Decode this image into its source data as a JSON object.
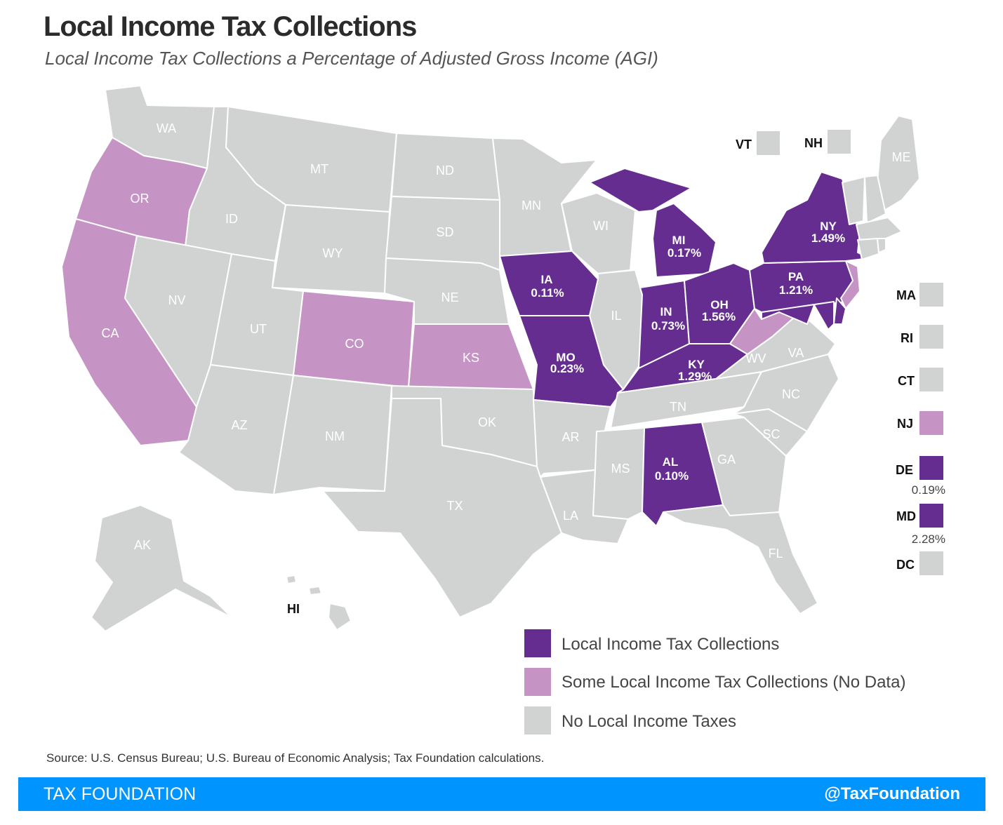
{
  "title": "Local Income Tax Collections",
  "subtitle": "Local Income Tax Collections a Percentage of Adjusted Gross Income (AGI)",
  "colors": {
    "collections": "#662d91",
    "some_no_data": "#c594c5",
    "none": "#d1d3d2",
    "footer_bar": "#0094ff"
  },
  "legend": [
    {
      "category": "collections",
      "label": "Local Income Tax Collections"
    },
    {
      "category": "some_no_data",
      "label": "Some Local Income Tax Collections (No Data)"
    },
    {
      "category": "none",
      "label": "No Local Income Taxes"
    }
  ],
  "states": {
    "WA": {
      "label": "WA",
      "category": "none",
      "value": null
    },
    "OR": {
      "label": "OR",
      "category": "some_no_data",
      "value": null
    },
    "CA": {
      "label": "CA",
      "category": "some_no_data",
      "value": null
    },
    "ID": {
      "label": "ID",
      "category": "none",
      "value": null
    },
    "NV": {
      "label": "NV",
      "category": "none",
      "value": null
    },
    "MT": {
      "label": "MT",
      "category": "none",
      "value": null
    },
    "WY": {
      "label": "WY",
      "category": "none",
      "value": null
    },
    "UT": {
      "label": "UT",
      "category": "none",
      "value": null
    },
    "AZ": {
      "label": "AZ",
      "category": "none",
      "value": null
    },
    "CO": {
      "label": "CO",
      "category": "some_no_data",
      "value": null
    },
    "NM": {
      "label": "NM",
      "category": "none",
      "value": null
    },
    "ND": {
      "label": "ND",
      "category": "none",
      "value": null
    },
    "SD": {
      "label": "SD",
      "category": "none",
      "value": null
    },
    "NE": {
      "label": "NE",
      "category": "none",
      "value": null
    },
    "KS": {
      "label": "KS",
      "category": "some_no_data",
      "value": null
    },
    "OK": {
      "label": "OK",
      "category": "none",
      "value": null
    },
    "TX": {
      "label": "TX",
      "category": "none",
      "value": null
    },
    "MN": {
      "label": "MN",
      "category": "none",
      "value": null
    },
    "IA": {
      "label": "IA",
      "category": "collections",
      "value": "0.11%"
    },
    "MO": {
      "label": "MO",
      "category": "collections",
      "value": "0.23%"
    },
    "AR": {
      "label": "AR",
      "category": "none",
      "value": null
    },
    "LA": {
      "label": "LA",
      "category": "none",
      "value": null
    },
    "WI": {
      "label": "WI",
      "category": "none",
      "value": null
    },
    "IL": {
      "label": "IL",
      "category": "none",
      "value": null
    },
    "MI": {
      "label": "MI",
      "category": "collections",
      "value": "0.17%"
    },
    "IN": {
      "label": "IN",
      "category": "collections",
      "value": "0.73%"
    },
    "OH": {
      "label": "OH",
      "category": "collections",
      "value": "1.56%"
    },
    "KY": {
      "label": "KY",
      "category": "collections",
      "value": "1.29%"
    },
    "TN": {
      "label": "TN",
      "category": "none",
      "value": null
    },
    "MS": {
      "label": "MS",
      "category": "none",
      "value": null
    },
    "AL": {
      "label": "AL",
      "category": "collections",
      "value": "0.10%"
    },
    "GA": {
      "label": "GA",
      "category": "none",
      "value": null
    },
    "FL": {
      "label": "FL",
      "category": "none",
      "value": null
    },
    "SC": {
      "label": "SC",
      "category": "none",
      "value": null
    },
    "NC": {
      "label": "NC",
      "category": "none",
      "value": null
    },
    "VA": {
      "label": "VA",
      "category": "none",
      "value": null
    },
    "WV": {
      "label": "WV",
      "category": "some_no_data",
      "value": null
    },
    "PA": {
      "label": "PA",
      "category": "collections",
      "value": "1.21%"
    },
    "NY": {
      "label": "NY",
      "category": "collections",
      "value": "1.49%"
    },
    "ME": {
      "label": "ME",
      "category": "none",
      "value": null
    },
    "AK": {
      "label": "AK",
      "category": "none",
      "value": null
    },
    "HI": {
      "label": "HI",
      "category": "none",
      "value": null
    },
    "VT": {
      "label": "VT",
      "category": "none",
      "value": null
    },
    "NH": {
      "label": "NH",
      "category": "none",
      "value": null
    },
    "MA": {
      "label": "MA",
      "category": "none",
      "value": null
    },
    "RI": {
      "label": "RI",
      "category": "none",
      "value": null
    },
    "CT": {
      "label": "CT",
      "category": "none",
      "value": null
    },
    "NJ": {
      "label": "NJ",
      "category": "some_no_data",
      "value": null
    },
    "DE": {
      "label": "DE",
      "category": "collections",
      "value": "0.19%"
    },
    "MD": {
      "label": "MD",
      "category": "collections",
      "value": "2.28%"
    },
    "DC": {
      "label": "DC",
      "category": "none",
      "value": null
    }
  },
  "source": "Source: U.S. Census Bureau; U.S. Bureau of Economic Analysis; Tax Foundation calculations.",
  "footer": {
    "brand": "TAX FOUNDATION",
    "handle": "@TaxFoundation"
  }
}
